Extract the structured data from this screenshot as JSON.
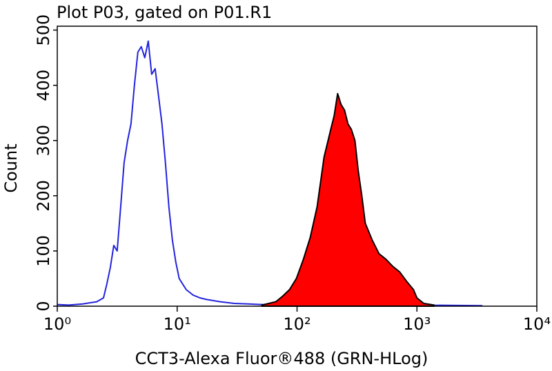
{
  "chart_data": {
    "type": "histogram-overlay",
    "title": "Plot P03, gated on P01.R1",
    "xlabel": "CCT3-Alexa Fluor®488 (GRN-HLog)",
    "ylabel": "Count",
    "xscale": "log",
    "xlim": [
      1,
      10000
    ],
    "ylim": [
      0,
      507
    ],
    "xticks": [
      {
        "value": 1,
        "label": "10⁰"
      },
      {
        "value": 10,
        "label": "10¹"
      },
      {
        "value": 100,
        "label": "10²"
      },
      {
        "value": 1000,
        "label": "10³"
      },
      {
        "value": 10000,
        "label": "10⁴"
      }
    ],
    "yticks": [
      0,
      100,
      200,
      300,
      400,
      500
    ],
    "series": [
      {
        "style": "outline",
        "color": "#2222dd",
        "x": [
          1,
          1.25,
          1.63,
          2.13,
          2.43,
          2.59,
          2.77,
          2.96,
          3.16,
          3.38,
          3.61,
          3.86,
          4.12,
          4.4,
          4.7,
          5.02,
          5.37,
          5.74,
          6.13,
          6.55,
          7.0,
          7.47,
          7.98,
          8.53,
          9.12,
          9.74,
          10.4,
          11.9,
          13.6,
          15.5,
          17.7,
          23.0,
          30.0,
          39.1,
          66.4,
          129,
          249,
          936,
          3516
        ],
        "values": [
          3,
          2,
          4,
          8,
          15,
          40,
          70,
          110,
          100,
          180,
          260,
          300,
          330,
          400,
          460,
          470,
          450,
          480,
          420,
          430,
          380,
          330,
          260,
          180,
          120,
          80,
          50,
          30,
          20,
          15,
          12,
          8,
          5,
          4,
          2,
          1,
          1,
          2,
          1
        ]
      },
      {
        "style": "filled",
        "color": "#ff0000",
        "edgecolor": "#000000",
        "x": [
          50.9,
          66.4,
          75.7,
          86.5,
          98.7,
          113,
          129,
          147,
          168,
          191,
          204,
          218,
          233,
          249,
          266,
          284,
          304,
          324,
          347,
          371,
          423,
          483,
          551,
          629,
          718,
          820,
          936,
          1000,
          1140,
          1390
        ],
        "values": [
          2,
          8,
          18,
          30,
          50,
          85,
          125,
          180,
          270,
          320,
          345,
          385,
          365,
          355,
          330,
          320,
          300,
          245,
          200,
          150,
          120,
          95,
          85,
          72,
          62,
          45,
          30,
          15,
          5,
          2
        ]
      }
    ]
  }
}
